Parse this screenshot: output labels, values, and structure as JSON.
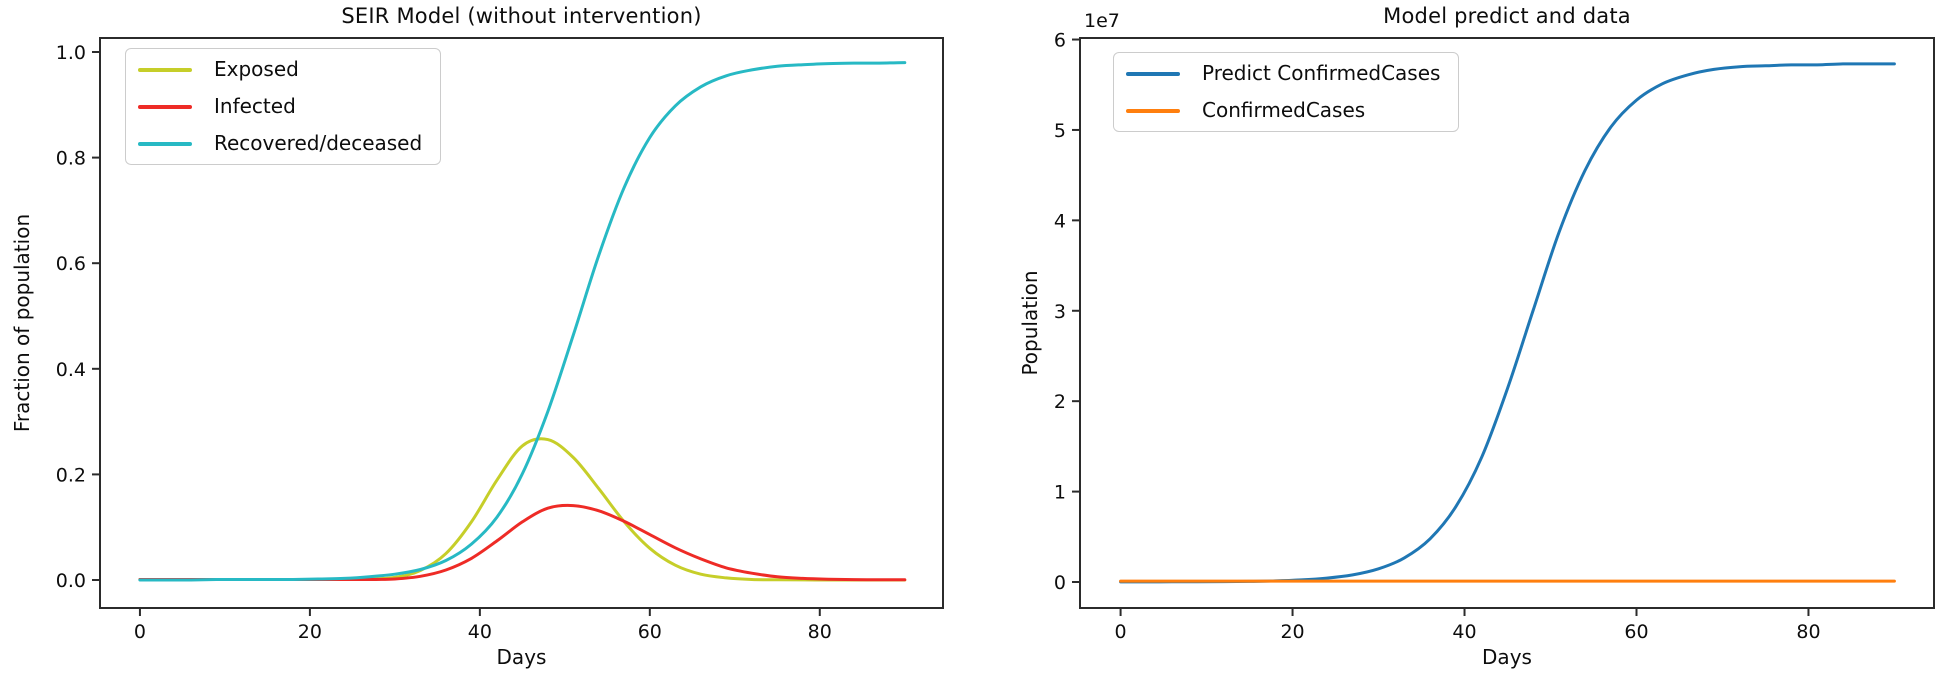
{
  "figure": {
    "background": "#ffffff",
    "spine_color": "#2b2b2b",
    "tick_color": "#2b2b2b",
    "text_color": "#0d0d0d"
  },
  "chart_data": [
    {
      "type": "line",
      "title": "SEIR Model (without intervention)",
      "xlabel": "Days",
      "ylabel": "Fraction of population",
      "xlim": [
        -4.7,
        94.5
      ],
      "ylim": [
        -0.053,
        1.0265
      ],
      "x_tick_values": [
        0,
        20,
        40,
        60,
        80
      ],
      "x_tick_labels": [
        "0",
        "20",
        "40",
        "60",
        "80"
      ],
      "y_tick_values": [
        0.0,
        0.2,
        0.4,
        0.6,
        0.8,
        1.0
      ],
      "y_tick_labels": [
        "0.0",
        "0.2",
        "0.4",
        "0.6",
        "0.8",
        "1.0"
      ],
      "grid": false,
      "legend_position": "upper left",
      "x": [
        0,
        3,
        6,
        9,
        12,
        15,
        18,
        21,
        24,
        27,
        30,
        33,
        36,
        39,
        42,
        45,
        48,
        51,
        54,
        57,
        60,
        63,
        66,
        69,
        72,
        75,
        78,
        81,
        84,
        87,
        90
      ],
      "series": [
        {
          "name": "Exposed",
          "color": "#c6ce29",
          "values": [
            0.001,
            0.001,
            0.001,
            0.001,
            0.001,
            0.001,
            0.001,
            0.001,
            0.002,
            0.002,
            0.005,
            0.018,
            0.05,
            0.11,
            0.189,
            0.254,
            0.266,
            0.232,
            0.173,
            0.11,
            0.06,
            0.028,
            0.011,
            0.004,
            0.001,
            0.0004,
            0.0002,
            0.0001,
            0.0001,
            0.0001,
            0.0001
          ]
        },
        {
          "name": "Infected",
          "color": "#ee2b26",
          "values": [
            0.001,
            0.001,
            0.001,
            0.001,
            0.001,
            0.001,
            0.001,
            0.001,
            0.001,
            0.001,
            0.002,
            0.007,
            0.019,
            0.041,
            0.074,
            0.11,
            0.136,
            0.141,
            0.131,
            0.111,
            0.086,
            0.061,
            0.04,
            0.023,
            0.013,
            0.006,
            0.003,
            0.0015,
            0.0008,
            0.0005,
            0.0004
          ]
        },
        {
          "name": "Recovered/deceased",
          "color": "#27b9c4",
          "values": [
            0.0,
            0.0,
            0.0,
            0.001,
            0.001,
            0.001,
            0.001,
            0.002,
            0.003,
            0.006,
            0.011,
            0.02,
            0.037,
            0.068,
            0.119,
            0.201,
            0.319,
            0.464,
            0.615,
            0.744,
            0.838,
            0.898,
            0.934,
            0.955,
            0.966,
            0.973,
            0.976,
            0.978,
            0.979,
            0.979,
            0.98
          ]
        }
      ]
    },
    {
      "type": "line",
      "title": "Model predict and data",
      "xlabel": "Days",
      "ylabel": "Population",
      "y_offset_text": "1e7",
      "y_unit_multiplier": 10000000,
      "xlim": [
        -4.72,
        94.6
      ],
      "ylim": [
        -0.2876,
        6.017
      ],
      "x_tick_values": [
        0,
        20,
        40,
        60,
        80
      ],
      "x_tick_labels": [
        "0",
        "20",
        "40",
        "60",
        "80"
      ],
      "y_tick_values": [
        0,
        1,
        2,
        3,
        4,
        5,
        6
      ],
      "y_tick_labels": [
        "0",
        "1",
        "2",
        "3",
        "4",
        "5",
        "6"
      ],
      "grid": false,
      "legend_position": "upper left",
      "x": [
        0,
        3,
        6,
        9,
        12,
        15,
        18,
        21,
        24,
        27,
        30,
        33,
        36,
        39,
        42,
        45,
        48,
        51,
        54,
        57,
        60,
        63,
        66,
        69,
        72,
        75,
        78,
        81,
        84,
        87,
        90
      ],
      "series": [
        {
          "name": "Predict ConfirmedCases",
          "color": "#1f77b4",
          "values": [
            0.001,
            0.001,
            0.002,
            0.003,
            0.004,
            0.007,
            0.012,
            0.023,
            0.043,
            0.079,
            0.146,
            0.266,
            0.478,
            0.834,
            1.38,
            2.14,
            3.01,
            3.87,
            4.55,
            5.03,
            5.33,
            5.51,
            5.61,
            5.67,
            5.7,
            5.71,
            5.72,
            5.72,
            5.73,
            5.73,
            5.73
          ]
        },
        {
          "name": "ConfirmedCases",
          "color": "#ff7f0e",
          "values": [
            0.01,
            0.01,
            0.01,
            0.01,
            0.01,
            0.01,
            0.01,
            0.01,
            0.01,
            0.01,
            0.01,
            0.01,
            0.01,
            0.01,
            0.01,
            0.01,
            0.01,
            0.01,
            0.01,
            0.01,
            0.01,
            0.01,
            0.01,
            0.01,
            0.01,
            0.01,
            0.01,
            0.01,
            0.01,
            0.01,
            0.01
          ]
        }
      ]
    }
  ]
}
